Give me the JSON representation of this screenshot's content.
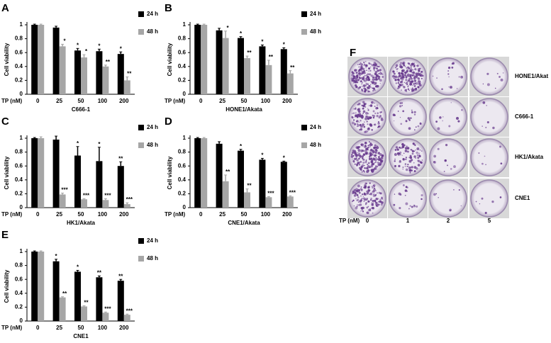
{
  "chart_data": [
    {
      "type": "bar",
      "panel": "A",
      "ylabel": "Cell viability",
      "x_prefix": "TP (nM)",
      "xlabel": "C666-1",
      "categories": [
        "0",
        "25",
        "50",
        "100",
        "200"
      ],
      "ylim": [
        0,
        1
      ],
      "yticks": [
        0,
        0.2,
        0.4,
        0.6,
        0.8,
        1
      ],
      "series": [
        {
          "name": "24 h",
          "color": "#000000",
          "values": [
            1,
            0.96,
            0.63,
            0.62,
            0.58
          ],
          "errors": [
            0.01,
            0.02,
            0.03,
            0.03,
            0.03
          ],
          "annotations": [
            null,
            null,
            "*",
            "*",
            "*"
          ]
        },
        {
          "name": "48 h",
          "color": "#a6a6a6",
          "values": [
            1,
            0.69,
            0.53,
            0.4,
            0.2
          ],
          "errors": [
            0.01,
            0.03,
            0.04,
            0.02,
            0.05
          ],
          "annotations": [
            null,
            "*",
            "*",
            "**",
            "**"
          ]
        }
      ]
    },
    {
      "type": "bar",
      "panel": "B",
      "ylabel": "Cell viability",
      "x_prefix": "TP (nM)",
      "xlabel": "HONE1/Akata",
      "categories": [
        "0",
        "25",
        "50",
        "100",
        "200"
      ],
      "ylim": [
        0,
        1
      ],
      "yticks": [
        0,
        0.2,
        0.4,
        0.6,
        0.8,
        1
      ],
      "series": [
        {
          "name": "24 h",
          "color": "#000000",
          "values": [
            1,
            0.92,
            0.81,
            0.69,
            0.65
          ],
          "errors": [
            0.01,
            0.03,
            0.02,
            0.02,
            0.02
          ],
          "annotations": [
            null,
            null,
            "*",
            "*",
            "*"
          ]
        },
        {
          "name": "48 h",
          "color": "#a6a6a6",
          "values": [
            1,
            0.81,
            0.52,
            0.42,
            0.3
          ],
          "errors": [
            0.01,
            0.1,
            0.03,
            0.07,
            0.04
          ],
          "annotations": [
            null,
            "*",
            "**",
            "**",
            "**"
          ]
        }
      ]
    },
    {
      "type": "bar",
      "panel": "C",
      "ylabel": "Cell viability",
      "x_prefix": "TP (nM)",
      "xlabel": "HK1/Akata",
      "categories": [
        "0",
        "25",
        "50",
        "100",
        "200"
      ],
      "ylim": [
        0,
        1
      ],
      "yticks": [
        0,
        0.2,
        0.4,
        0.6,
        0.8,
        1
      ],
      "series": [
        {
          "name": "24 h",
          "color": "#000000",
          "values": [
            1,
            0.98,
            0.75,
            0.67,
            0.6
          ],
          "errors": [
            0.01,
            0.05,
            0.13,
            0.2,
            0.06
          ],
          "annotations": [
            null,
            null,
            "*",
            "*",
            "**"
          ]
        },
        {
          "name": "48 h",
          "color": "#a6a6a6",
          "values": [
            1,
            0.19,
            0.12,
            0.11,
            0.05
          ],
          "errors": [
            0.02,
            0.02,
            0.01,
            0.02,
            0.02
          ],
          "annotations": [
            null,
            "***",
            "***",
            "***",
            "***"
          ]
        }
      ]
    },
    {
      "type": "bar",
      "panel": "D",
      "ylabel": "Cell viability",
      "x_prefix": "TP (nM)",
      "xlabel": "CNE1/Akata",
      "categories": [
        "0",
        "25",
        "50",
        "100",
        "200"
      ],
      "ylim": [
        0,
        1
      ],
      "yticks": [
        0,
        0.2,
        0.4,
        0.6,
        0.8,
        1
      ],
      "series": [
        {
          "name": "24 h",
          "color": "#000000",
          "values": [
            1,
            0.92,
            0.82,
            0.69,
            0.66
          ],
          "errors": [
            0.01,
            0.03,
            0.02,
            0.02,
            0.01
          ],
          "annotations": [
            null,
            null,
            "*",
            "*",
            "*"
          ]
        },
        {
          "name": "48 h",
          "color": "#a6a6a6",
          "values": [
            1,
            0.38,
            0.22,
            0.15,
            0.16
          ],
          "errors": [
            0.01,
            0.09,
            0.05,
            0.01,
            0.01
          ],
          "annotations": [
            null,
            "**",
            "**",
            "***",
            "***"
          ]
        }
      ]
    },
    {
      "type": "bar",
      "panel": "E",
      "ylabel": "Cell viability",
      "x_prefix": "TP (nM)",
      "xlabel": "CNE1",
      "categories": [
        "0",
        "25",
        "50",
        "100",
        "200"
      ],
      "ylim": [
        0,
        1
      ],
      "yticks": [
        0,
        0.2,
        0.4,
        0.6,
        0.8,
        1
      ],
      "series": [
        {
          "name": "24 h",
          "color": "#000000",
          "values": [
            1,
            0.86,
            0.71,
            0.63,
            0.58
          ],
          "errors": [
            0.01,
            0.03,
            0.02,
            0.02,
            0.02
          ],
          "annotations": [
            null,
            "*",
            "*",
            "**",
            "**"
          ]
        },
        {
          "name": "48 h",
          "color": "#a6a6a6",
          "values": [
            1,
            0.34,
            0.21,
            0.12,
            0.09
          ],
          "errors": [
            0.01,
            0.01,
            0.01,
            0.01,
            0.01
          ],
          "annotations": [
            null,
            "**",
            "**",
            "***",
            "***"
          ]
        }
      ]
    }
  ],
  "panel_f": {
    "panel": "F",
    "rows": [
      "HONE1/Akat",
      "C666-1",
      "HK1/Akata",
      "CNE1"
    ],
    "x_prefix": "TP (nM)",
    "columns": [
      "0",
      "1",
      "2",
      "5"
    ]
  }
}
